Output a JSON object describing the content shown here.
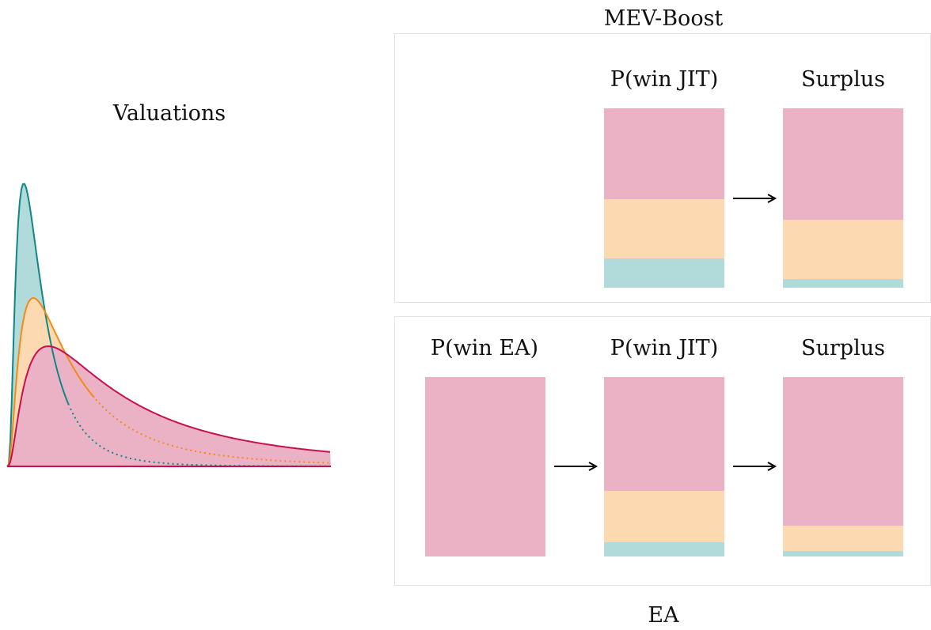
{
  "valuations": {
    "title": "Valuations"
  },
  "mev_boost": {
    "title": "MEV-Boost",
    "columns": [
      {
        "label": "P(win JIT)",
        "shares": {
          "pink": 0.505,
          "peach": 0.33,
          "teal": 0.165
        }
      },
      {
        "label": "Surplus",
        "shares": {
          "pink": 0.62,
          "peach": 0.33,
          "teal": 0.05
        }
      }
    ]
  },
  "ea": {
    "title": "EA",
    "columns": [
      {
        "label": "P(win EA)",
        "shares": {
          "pink": 1.0,
          "peach": 0.0,
          "teal": 0.0
        }
      },
      {
        "label": "P(win JIT)",
        "shares": {
          "pink": 0.635,
          "peach": 0.285,
          "teal": 0.08
        }
      },
      {
        "label": "Surplus",
        "shares": {
          "pink": 0.83,
          "peach": 0.14,
          "teal": 0.03
        }
      }
    ]
  },
  "colors": {
    "pink": "#ebb2c6",
    "peach": "#fcd9b1",
    "teal": "#b1dbdb",
    "teal_line": "#128585",
    "orange_line": "#f58b12",
    "crimson_line": "#c8104f"
  }
}
